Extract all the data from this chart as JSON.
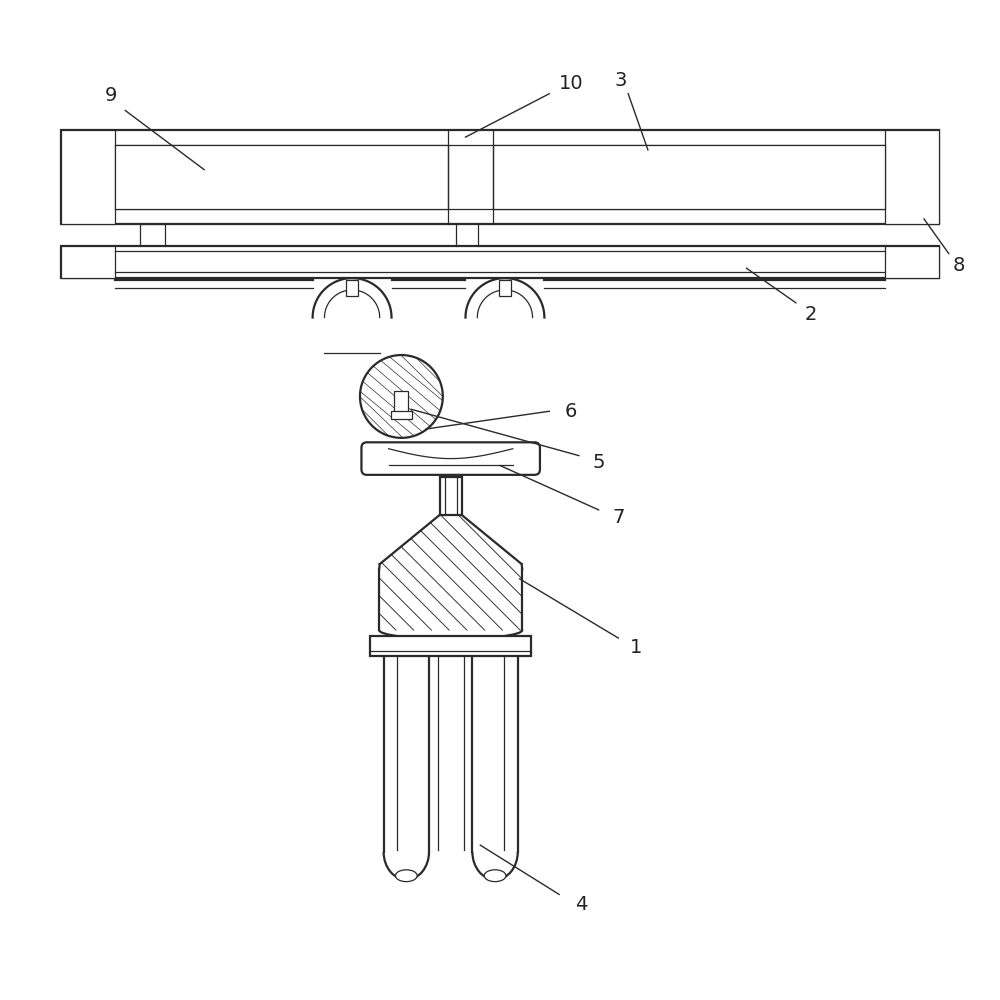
{
  "bg_color": "#ffffff",
  "line_color": "#2a2a2a",
  "label_color": "#222222",
  "label_fs": 14,
  "lw_main": 1.6,
  "lw_thin": 0.9,
  "lw_hatch": 0.6
}
